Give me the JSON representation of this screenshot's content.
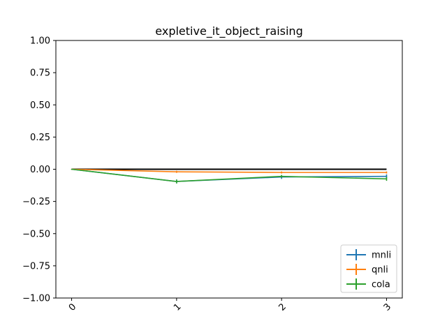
{
  "chart_data": {
    "type": "line",
    "title": "expletive_it_object_raising",
    "xlabel": "",
    "ylabel": "",
    "x": [
      0,
      1,
      2,
      3
    ],
    "x_tick_labels": [
      "0",
      "1",
      "2",
      "3"
    ],
    "ylim": [
      -1.0,
      1.0
    ],
    "y_ticks": [
      -1.0,
      -0.75,
      -0.5,
      -0.25,
      0.0,
      0.25,
      0.5,
      0.75,
      1.0
    ],
    "y_tick_labels": [
      "−1.00",
      "−0.75",
      "−0.50",
      "−0.25",
      "0.00",
      "0.25",
      "0.50",
      "0.75",
      "1.00"
    ],
    "grid": false,
    "legend_position": "lower-right",
    "baseline": {
      "value": 0.0,
      "color": "#000000"
    },
    "series": [
      {
        "name": "mnli",
        "color": "#1f77b4",
        "values": [
          0.0,
          -0.095,
          -0.06,
          -0.055
        ],
        "errors": [
          0.0,
          0.015,
          0.015,
          0.015
        ]
      },
      {
        "name": "qnli",
        "color": "#ff7f0e",
        "values": [
          0.0,
          -0.02,
          -0.025,
          -0.025
        ],
        "errors": [
          0.0,
          0.008,
          0.008,
          0.008
        ]
      },
      {
        "name": "cola",
        "color": "#2ca02c",
        "values": [
          0.0,
          -0.095,
          -0.055,
          -0.075
        ],
        "errors": [
          0.0,
          0.015,
          0.01,
          0.015
        ]
      }
    ]
  }
}
